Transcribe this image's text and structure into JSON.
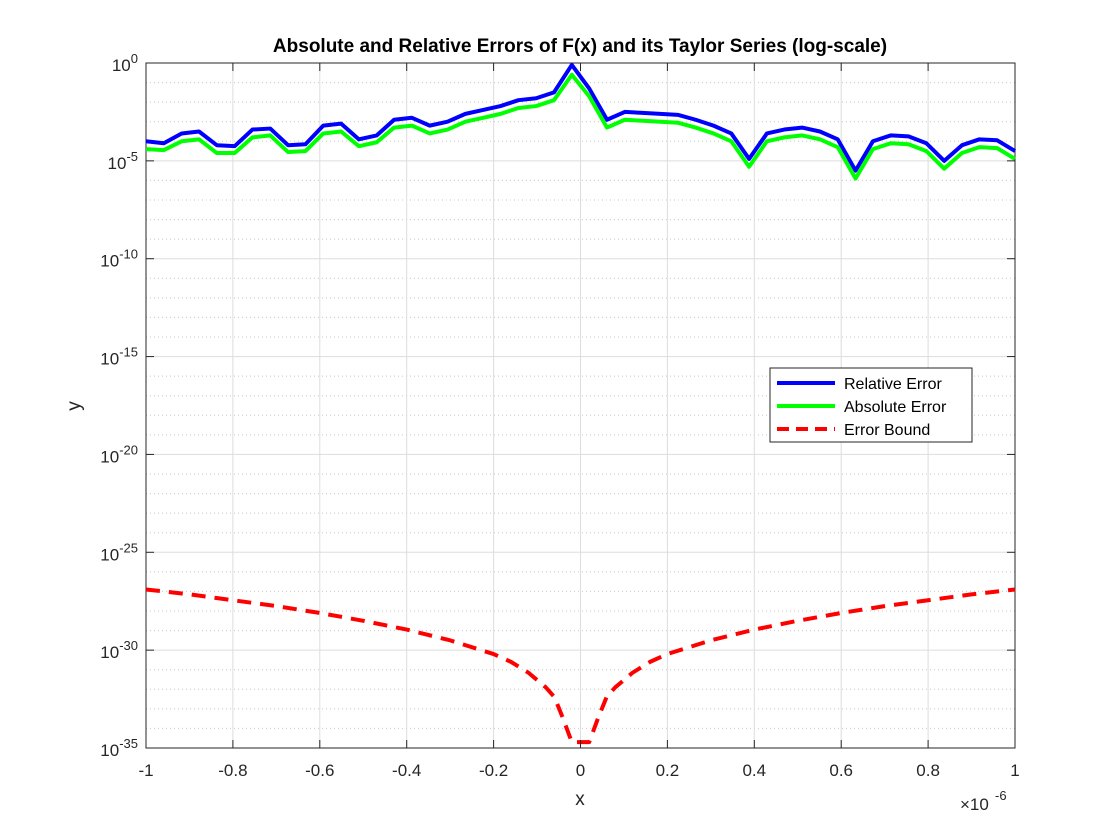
{
  "chart_data": {
    "type": "line",
    "title": "Absolute and Relative Errors of F(x) and its Taylor Series (log-scale)",
    "xlabel": "x",
    "ylabel": "y",
    "x_exponent_label": "×10",
    "x_exponent_power": "-6",
    "xlim": [
      -1e-06,
      1e-06
    ],
    "ylim": [
      1e-35,
      1
    ],
    "yscale": "log",
    "grid": true,
    "minor_grid": true,
    "legend_position": "right",
    "x_ticks": [
      -1,
      -0.8,
      -0.6,
      -0.4,
      -0.2,
      0,
      0.2,
      0.4,
      0.6,
      0.8,
      1
    ],
    "x_tick_labels": [
      "-1",
      "-0.8",
      "-0.6",
      "-0.4",
      "-0.2",
      "0",
      "0.2",
      "0.4",
      "0.6",
      "0.8",
      "1"
    ],
    "y_ticks": [
      0,
      -5,
      -10,
      -15,
      -20,
      -25,
      -30,
      -35
    ],
    "y_tick_base": "10",
    "y_tick_exponents": [
      "0",
      "-5",
      "-10",
      "-15",
      "-20",
      "-25",
      "-30",
      "-35"
    ],
    "x_scale_factor": 1e-06,
    "series": [
      {
        "name": "Relative Error",
        "color": "#0000ff",
        "style": "solid",
        "x": [
          -1,
          -0.959,
          -0.918,
          -0.878,
          -0.837,
          -0.796,
          -0.755,
          -0.714,
          -0.673,
          -0.633,
          -0.592,
          -0.551,
          -0.51,
          -0.469,
          -0.429,
          -0.388,
          -0.347,
          -0.306,
          -0.265,
          -0.224,
          -0.184,
          -0.143,
          -0.102,
          -0.061,
          -0.02,
          0.02,
          0.061,
          0.102,
          0.143,
          0.184,
          0.224,
          0.265,
          0.306,
          0.347,
          0.388,
          0.429,
          0.469,
          0.51,
          0.551,
          0.592,
          0.633,
          0.673,
          0.714,
          0.755,
          0.796,
          0.837,
          0.878,
          0.918,
          0.959,
          1
        ],
        "y": [
          -4.0,
          -4.1,
          -3.6,
          -3.5,
          -4.2,
          -4.25,
          -3.4,
          -3.35,
          -4.2,
          -4.15,
          -3.2,
          -3.1,
          -3.9,
          -3.7,
          -2.9,
          -2.8,
          -3.2,
          -3.0,
          -2.6,
          -2.4,
          -2.2,
          -1.9,
          -1.8,
          -1.5,
          -0.1,
          -1.3,
          -2.9,
          -2.5,
          -2.55,
          -2.6,
          -2.65,
          -2.9,
          -3.2,
          -3.6,
          -4.9,
          -3.6,
          -3.4,
          -3.3,
          -3.5,
          -3.9,
          -5.5,
          -4.0,
          -3.7,
          -3.75,
          -4.1,
          -5.0,
          -4.2,
          -3.9,
          -3.95,
          -4.5
        ]
      },
      {
        "name": "Absolute Error",
        "color": "#00ff00",
        "style": "solid",
        "x": [
          -1,
          -0.959,
          -0.918,
          -0.878,
          -0.837,
          -0.796,
          -0.755,
          -0.714,
          -0.673,
          -0.633,
          -0.592,
          -0.551,
          -0.51,
          -0.469,
          -0.429,
          -0.388,
          -0.347,
          -0.306,
          -0.265,
          -0.224,
          -0.184,
          -0.143,
          -0.102,
          -0.061,
          -0.02,
          0.02,
          0.061,
          0.102,
          0.143,
          0.184,
          0.224,
          0.265,
          0.306,
          0.347,
          0.388,
          0.429,
          0.469,
          0.51,
          0.551,
          0.592,
          0.633,
          0.673,
          0.714,
          0.755,
          0.796,
          0.837,
          0.878,
          0.918,
          0.959,
          1
        ],
        "y": [
          -4.4,
          -4.45,
          -4.0,
          -3.9,
          -4.6,
          -4.6,
          -3.8,
          -3.7,
          -4.55,
          -4.5,
          -3.6,
          -3.5,
          -4.25,
          -4.05,
          -3.3,
          -3.2,
          -3.6,
          -3.4,
          -3.0,
          -2.8,
          -2.6,
          -2.3,
          -2.2,
          -1.9,
          -0.6,
          -1.7,
          -3.3,
          -2.9,
          -2.95,
          -3.0,
          -3.05,
          -3.3,
          -3.6,
          -4.0,
          -5.3,
          -4.0,
          -3.8,
          -3.7,
          -3.9,
          -4.3,
          -5.9,
          -4.4,
          -4.1,
          -4.15,
          -4.5,
          -5.4,
          -4.6,
          -4.3,
          -4.35,
          -4.9
        ]
      },
      {
        "name": "Error Bound",
        "color": "#ff0000",
        "style": "dashed",
        "x": [
          -1,
          -0.9,
          -0.8,
          -0.7,
          -0.6,
          -0.5,
          -0.4,
          -0.3,
          -0.2,
          -0.16,
          -0.12,
          -0.08,
          -0.06,
          -0.04,
          -0.02,
          0.02,
          0.04,
          0.06,
          0.08,
          0.12,
          0.16,
          0.2,
          0.3,
          0.4,
          0.5,
          0.6,
          0.7,
          0.8,
          0.9,
          1
        ],
        "y": [
          -26.9,
          -27.15,
          -27.45,
          -27.75,
          -28.1,
          -28.5,
          -28.95,
          -29.5,
          -30.2,
          -30.6,
          -31.15,
          -31.9,
          -32.4,
          -33.5,
          -34.7,
          -34.7,
          -33.5,
          -32.4,
          -31.9,
          -31.15,
          -30.6,
          -30.2,
          -29.5,
          -28.95,
          -28.5,
          -28.1,
          -27.75,
          -27.45,
          -27.15,
          -26.9
        ]
      }
    ]
  }
}
